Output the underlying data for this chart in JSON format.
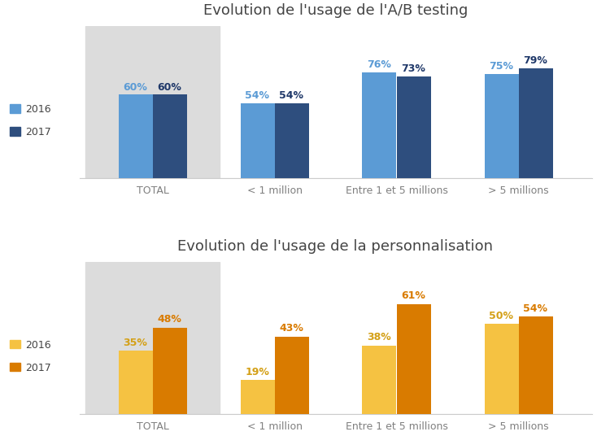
{
  "chart1": {
    "title": "Evolution de l'usage de l'A/B testing",
    "categories": [
      "TOTAL",
      "< 1 million",
      "Entre 1 et 5 millions",
      "> 5 millions"
    ],
    "values_2016": [
      60,
      54,
      76,
      75
    ],
    "values_2017": [
      60,
      54,
      73,
      79
    ],
    "color_2016": "#5B9BD5",
    "color_2017": "#2E4E7E",
    "label_color_2016": "#5B9BD5",
    "label_color_2017": "#1F3869",
    "label_2016": "2016",
    "label_2017": "2017",
    "highlight_bg": "#DCDCDC"
  },
  "chart2": {
    "title": "Evolution de l'usage de la personnalisation",
    "categories": [
      "TOTAL",
      "< 1 million",
      "Entre 1 et 5 millions",
      "> 5 millions"
    ],
    "values_2016": [
      35,
      19,
      38,
      50
    ],
    "values_2017": [
      48,
      43,
      61,
      54
    ],
    "color_2016": "#F5C242",
    "color_2017": "#D97B00",
    "label_color_2016": "#D4A017",
    "label_color_2017": "#D97B00",
    "label_2016": "2016",
    "label_2017": "2017",
    "highlight_bg": "#DCDCDC"
  },
  "bg_color": "#FFFFFF",
  "bar_width": 0.28,
  "title_fontsize": 13,
  "tick_fontsize": 9,
  "legend_fontsize": 9,
  "value_fontsize": 9,
  "cat_label_color": "#808080"
}
